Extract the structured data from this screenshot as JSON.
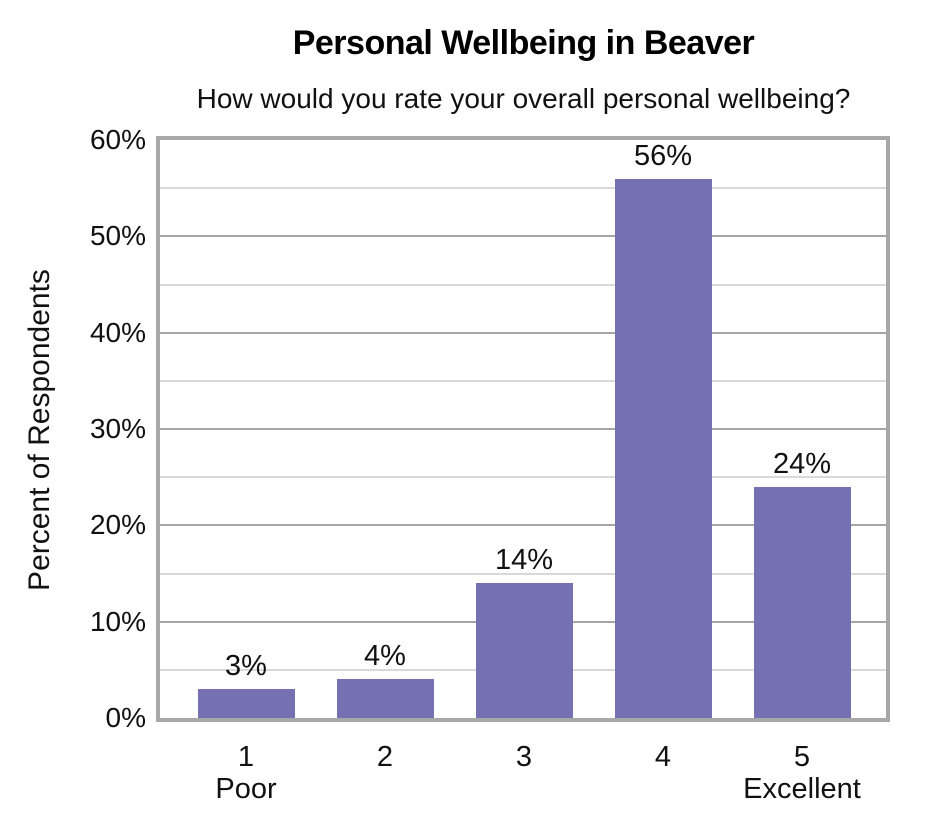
{
  "chart_data": {
    "type": "bar",
    "title": "Personal Wellbeing in Beaver",
    "subtitle": "How would you rate your overall personal wellbeing?",
    "xlabel": "",
    "ylabel": "Percent of Respondents",
    "categories": [
      "1",
      "2",
      "3",
      "4",
      "5"
    ],
    "category_sublabels": [
      "Poor",
      "",
      "",
      "",
      "Excellent"
    ],
    "values": [
      3,
      4,
      14,
      56,
      24
    ],
    "data_labels": [
      "3%",
      "4%",
      "14%",
      "56%",
      "24%"
    ],
    "ylim": [
      0,
      60
    ],
    "y_ticks": [
      {
        "value": 0,
        "label": "0%"
      },
      {
        "value": 10,
        "label": "10%"
      },
      {
        "value": 20,
        "label": "20%"
      },
      {
        "value": 30,
        "label": "30%"
      },
      {
        "value": 40,
        "label": "40%"
      },
      {
        "value": 50,
        "label": "50%"
      },
      {
        "value": 60,
        "label": "60%"
      }
    ],
    "y_minor_tick_step": 5,
    "grid": "on",
    "legend": "none",
    "colors": {
      "bar_fill": "#7470B2",
      "major_gridline": "#A6A6A6",
      "minor_gridline": "#D9D9D9",
      "axis_border": "#A8A8A8",
      "text": "#111111",
      "background": "#FFFFFF"
    }
  }
}
